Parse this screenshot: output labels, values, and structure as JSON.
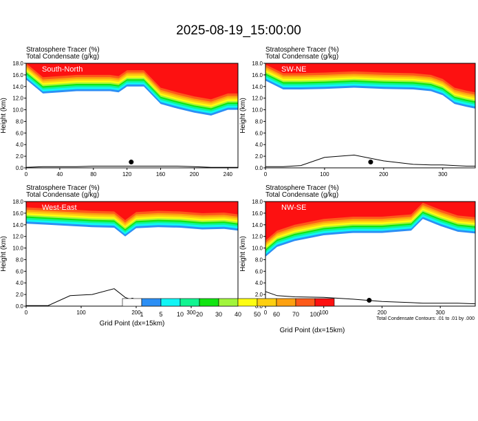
{
  "figure": {
    "title": "2025-08-19_15:00:00",
    "contour_note": "Total Condensate Contours: .01 to .01 by .000",
    "xlabel": "Grid Point (dx=15km)"
  },
  "colorbar": {
    "colors": [
      "#ffffff",
      "#2c8ff5",
      "#11f5f5",
      "#11f591",
      "#11e511",
      "#a1f53b",
      "#fdfd11",
      "#fdcf11",
      "#fda111",
      "#fd5a1a",
      "#fd1111"
    ],
    "ticks": [
      "1",
      "5",
      "10",
      "20",
      "30",
      "40",
      "50",
      "60",
      "70",
      "100"
    ]
  },
  "chart_data": [
    {
      "type": "area",
      "label": "South-North",
      "header_line1": "Stratosphere Tracer   (%)",
      "header_line2": "Total Condensate   (g/kg)",
      "ylabel": "Height (km)",
      "xlabel": "",
      "xlim": [
        0,
        252
      ],
      "ylim": [
        0,
        18
      ],
      "xticks": [
        "0",
        "40",
        "80",
        "120",
        "160",
        "200",
        "240"
      ],
      "yticks": [
        "0.0",
        "2.0",
        "4.0",
        "6.0",
        "8.0",
        "10.0",
        "12.0",
        "14.0",
        "16.0",
        "18.0"
      ],
      "x": [
        0,
        20,
        40,
        60,
        80,
        100,
        110,
        120,
        140,
        160,
        180,
        200,
        220,
        240,
        252
      ],
      "tracer_base_km": [
        15.2,
        12.8,
        13.0,
        13.2,
        13.2,
        13.2,
        13.0,
        14.0,
        14.0,
        11.0,
        10.2,
        9.5,
        9.0,
        10.0,
        10.0
      ],
      "terrain_km": [
        0.1,
        0.2,
        0.2,
        0.2,
        0.3,
        0.3,
        0.3,
        0.3,
        0.3,
        0.3,
        0.3,
        0.2,
        0.1,
        0.1,
        0.1
      ],
      "marker": {
        "x": 125,
        "y": 1.0
      }
    },
    {
      "type": "area",
      "label": "SW-NE",
      "header_line1": "Stratosphere Tracer   (%)",
      "header_line2": "Total Condensate   (g/kg)",
      "ylabel": "Height (km)",
      "xlabel": "",
      "xlim": [
        0,
        355
      ],
      "ylim": [
        0,
        18
      ],
      "xticks": [
        "0",
        "100",
        "200",
        "300"
      ],
      "yticks": [
        "0.0",
        "2.0",
        "4.0",
        "6.0",
        "8.0",
        "10.0",
        "12.0",
        "14.0",
        "16.0",
        "18.0"
      ],
      "x": [
        0,
        30,
        60,
        100,
        150,
        200,
        250,
        280,
        300,
        320,
        340,
        355
      ],
      "tracer_base_km": [
        15.0,
        13.5,
        13.5,
        13.6,
        13.8,
        13.6,
        13.5,
        13.2,
        12.5,
        11.0,
        10.5,
        10.2
      ],
      "terrain_km": [
        0.2,
        0.2,
        0.4,
        1.8,
        2.2,
        1.2,
        0.6,
        0.5,
        0.5,
        0.4,
        0.3,
        0.3
      ],
      "marker": {
        "x": 178,
        "y": 1.0
      }
    },
    {
      "type": "area",
      "label": "West-East",
      "header_line1": "Stratosphere Tracer   (%)",
      "header_line2": "Total Condensate   (g/kg)",
      "ylabel": "Height (km)",
      "xlabel": "Grid Point (dx=15km)",
      "xlim": [
        0,
        385
      ],
      "ylim": [
        0,
        18
      ],
      "xticks": [
        "0",
        "100",
        "200",
        "300"
      ],
      "yticks": [
        "0.0",
        "2.0",
        "4.0",
        "6.0",
        "8.0",
        "10.0",
        "12.0",
        "14.0",
        "16.0",
        "18.0"
      ],
      "x": [
        0,
        40,
        80,
        120,
        160,
        180,
        200,
        240,
        280,
        320,
        360,
        385
      ],
      "tracer_base_km": [
        14.2,
        14.0,
        13.8,
        13.6,
        13.5,
        12.0,
        13.4,
        13.6,
        13.5,
        13.2,
        13.3,
        13.0
      ],
      "terrain_km": [
        0.1,
        0.1,
        1.8,
        2.0,
        3.0,
        1.5,
        0.8,
        0.4,
        0.3,
        0.3,
        0.3,
        0.3
      ],
      "marker": {
        "x": 193,
        "y": 1.0
      }
    },
    {
      "type": "area",
      "label": "NW-SE",
      "header_line1": "Stratosphere Tracer   (%)",
      "header_line2": "Total Condensate   (g/kg)",
      "ylabel": "Height (km)",
      "xlabel": "",
      "xlim": [
        0,
        360
      ],
      "ylim": [
        0,
        18
      ],
      "xticks": [
        "0",
        "100",
        "200",
        "300"
      ],
      "yticks": [
        "0.0",
        "2.0",
        "4.0",
        "6.0",
        "8.0",
        "10.0",
        "12.0",
        "14.0",
        "16.0",
        "18.0"
      ],
      "x": [
        0,
        20,
        50,
        100,
        150,
        200,
        250,
        270,
        300,
        330,
        360
      ],
      "tracer_base_km": [
        8.5,
        10.2,
        11.2,
        12.2,
        12.6,
        12.6,
        13.0,
        15.0,
        13.8,
        12.8,
        12.5
      ],
      "terrain_km": [
        2.5,
        1.8,
        1.6,
        1.5,
        1.2,
        0.8,
        0.6,
        0.5,
        0.5,
        0.5,
        0.4
      ],
      "marker": {
        "x": 178,
        "y": 1.0
      }
    }
  ]
}
